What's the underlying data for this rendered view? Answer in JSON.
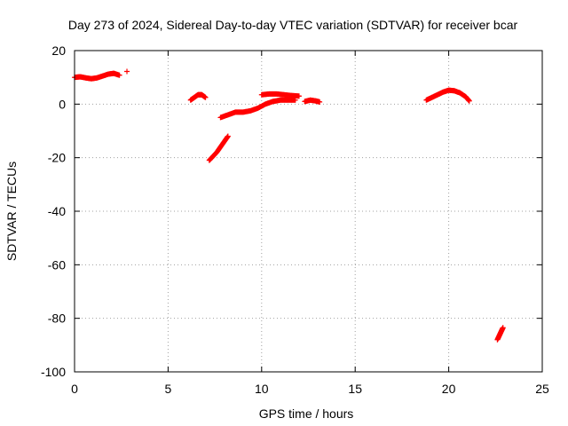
{
  "chart_data": {
    "type": "scatter",
    "title": "Day 273 of 2024, Sidereal Day-to-day VTEC variation (SDTVAR) for receiver bcar",
    "xlabel": "GPS time / hours",
    "ylabel": "SDTVAR / TECUs",
    "xlim": [
      0,
      25
    ],
    "ylim": [
      -100,
      20
    ],
    "xticks": [
      0,
      5,
      10,
      15,
      20,
      25
    ],
    "yticks": [
      -100,
      -80,
      -60,
      -40,
      -20,
      0,
      20
    ],
    "grid": true,
    "marker": "+",
    "color": "#ff0000",
    "segments": [
      {
        "x": [
          0.0,
          0.3,
          0.6,
          0.9,
          1.2,
          1.5,
          1.8,
          2.1,
          2.4
        ],
        "y": [
          10,
          10.2,
          9.8,
          9.5,
          9.8,
          10.5,
          11.2,
          11.5,
          10.8
        ]
      },
      {
        "x": [
          2.8
        ],
        "y": [
          12.2
        ]
      },
      {
        "x": [
          6.2,
          6.4,
          6.6,
          6.8,
          7.0
        ],
        "y": [
          1.5,
          2.5,
          3.5,
          3.5,
          2.5
        ]
      },
      {
        "x": [
          7.2,
          7.4,
          7.6,
          7.8,
          8.0,
          8.2
        ],
        "y": [
          -21,
          -19.5,
          -18,
          -16,
          -14,
          -12
        ]
      },
      {
        "x": [
          7.8,
          8.2,
          8.6,
          9.0,
          9.4,
          9.8,
          10.2,
          10.6,
          11.0,
          11.4,
          11.8
        ],
        "y": [
          -5,
          -4,
          -3,
          -3,
          -2.5,
          -1.5,
          0,
          1,
          1.5,
          1.5,
          1.5
        ]
      },
      {
        "x": [
          10.0,
          10.4,
          10.8,
          11.2,
          11.6,
          12.0
        ],
        "y": [
          3.5,
          3.8,
          3.8,
          3.5,
          3.2,
          3.0
        ]
      },
      {
        "x": [
          12.3,
          12.6,
          12.9,
          13.1
        ],
        "y": [
          1.0,
          1.5,
          1.2,
          0.8
        ]
      },
      {
        "x": [
          18.8,
          19.1,
          19.4,
          19.7,
          20.0,
          20.3,
          20.6,
          20.9,
          21.1
        ],
        "y": [
          1.5,
          2.5,
          3.5,
          4.5,
          5.2,
          5.0,
          4.2,
          2.8,
          1.2
        ]
      },
      {
        "x": [
          22.6,
          22.7,
          22.8,
          22.9
        ],
        "y": [
          -88,
          -86.5,
          -85,
          -83.5
        ]
      }
    ]
  }
}
